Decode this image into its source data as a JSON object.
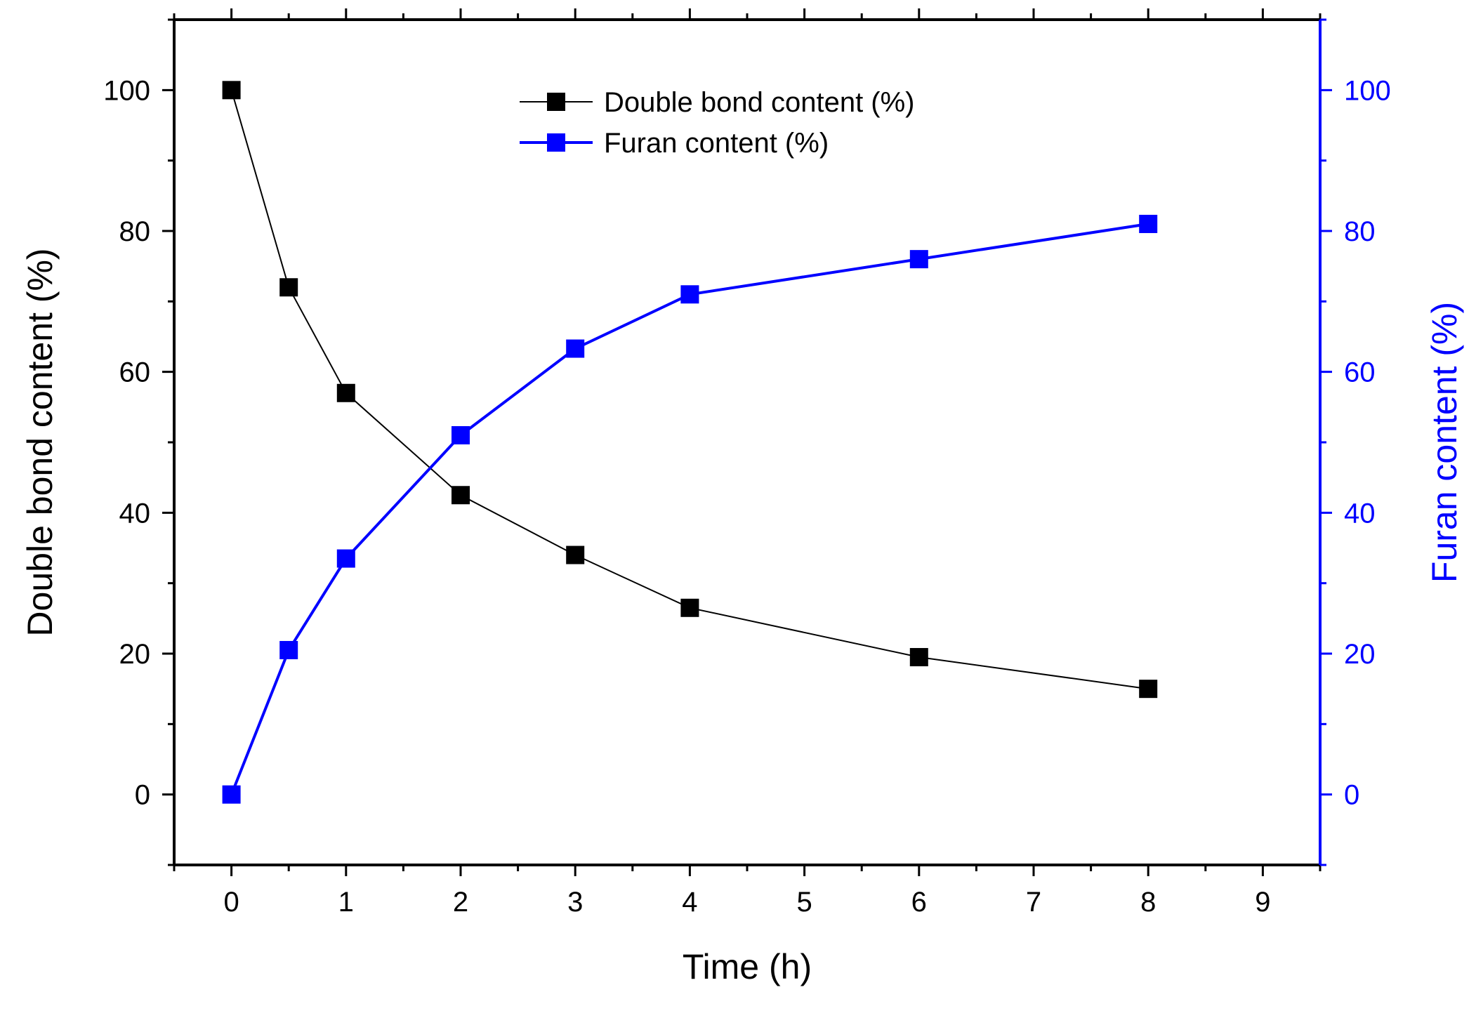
{
  "chart_data": {
    "type": "line",
    "xlabel": "Time (h)",
    "ylabel": "Double bond content (%)",
    "y2label": "Furan content (%)",
    "xlim": [
      -0.5,
      9.5
    ],
    "ylim": [
      -10,
      110
    ],
    "y2lim": [
      -10,
      110
    ],
    "x_ticks": [
      0,
      1,
      2,
      3,
      4,
      5,
      6,
      7,
      8,
      9
    ],
    "y_ticks": [
      0,
      20,
      40,
      60,
      80,
      100
    ],
    "y2_ticks": [
      0,
      20,
      40,
      60,
      80,
      100
    ],
    "grid": false,
    "legend_position": "top-center",
    "x": [
      0,
      0.5,
      1,
      2,
      3,
      4,
      6,
      8
    ],
    "series": [
      {
        "name": "Double bond content (%)",
        "axis": "left",
        "color": "#000000",
        "marker": "square",
        "values": [
          100,
          72,
          57,
          42.5,
          34,
          26.5,
          19.5,
          15
        ]
      },
      {
        "name": "Furan content (%)",
        "axis": "right",
        "color": "#0000ff",
        "marker": "square",
        "values": [
          0,
          20.5,
          33.5,
          51,
          63.3,
          71,
          76,
          81
        ]
      }
    ]
  }
}
